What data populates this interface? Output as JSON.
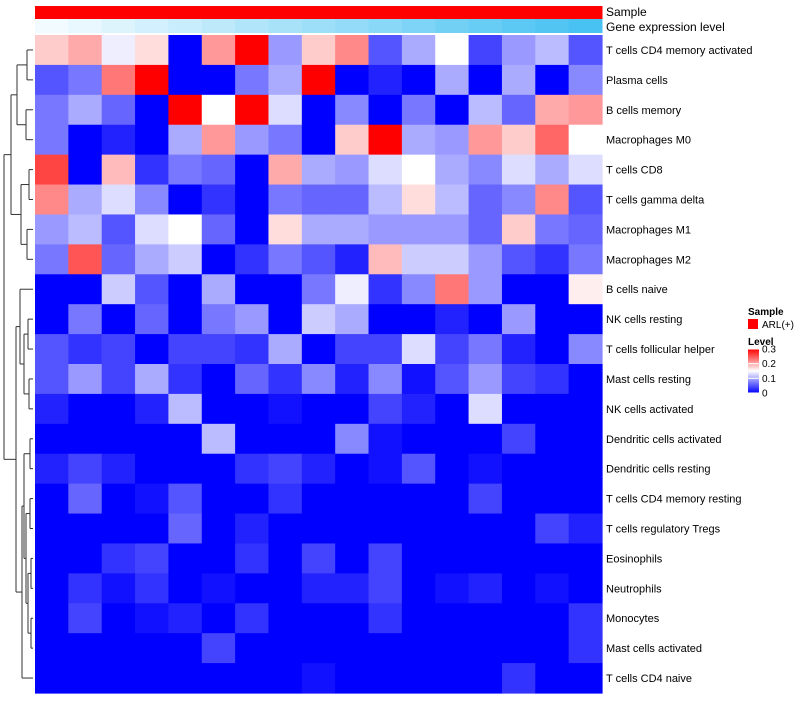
{
  "chart_data": {
    "type": "heatmap",
    "title": "",
    "annotation_rows": [
      {
        "label": "Sample",
        "kind": "sample"
      },
      {
        "label": "Gene expression level",
        "kind": "gradient"
      }
    ],
    "row_labels": [
      "T cells CD4 memory activated",
      "Plasma cells",
      "B cells memory",
      "Macrophages M0",
      "T cells CD8",
      "T cells gamma delta",
      "Macrophages M1",
      "Macrophages M2",
      "B cells naive",
      "NK cells resting",
      "T cells follicular helper",
      "Mast cells resting",
      "NK cells activated",
      "Dendritic cells activated",
      "Dendritic cells resting",
      "T cells CD4 memory resting",
      "T cells regulatory  Tregs",
      "Eosinophils",
      "Neutrophils",
      "Monocytes",
      "Mast cells activated",
      "T cells CD4 naive"
    ],
    "values": [
      [
        0.18,
        0.2,
        0.14,
        0.17,
        0.0,
        0.21,
        0.3,
        0.09,
        0.18,
        0.22,
        0.05,
        0.1,
        0.15,
        0.04,
        0.09,
        0.11,
        0.05
      ],
      [
        0.05,
        0.07,
        0.23,
        0.3,
        0.0,
        0.0,
        0.07,
        0.1,
        0.3,
        0.0,
        0.02,
        0.0,
        0.1,
        0.0,
        0.1,
        0.0,
        0.08
      ],
      [
        0.07,
        0.1,
        0.06,
        0.0,
        0.3,
        0.15,
        0.3,
        0.13,
        0.0,
        0.08,
        0.0,
        0.07,
        0.0,
        0.11,
        0.06,
        0.2,
        0.21
      ],
      [
        0.07,
        0.0,
        0.02,
        0.0,
        0.1,
        0.21,
        0.09,
        0.07,
        0.0,
        0.18,
        0.3,
        0.1,
        0.09,
        0.21,
        0.18,
        0.24,
        0.15
      ],
      [
        0.26,
        0.0,
        0.19,
        0.03,
        0.07,
        0.06,
        0.0,
        0.2,
        0.1,
        0.09,
        0.13,
        0.15,
        0.1,
        0.08,
        0.13,
        0.1,
        0.13
      ],
      [
        0.22,
        0.1,
        0.13,
        0.08,
        0.0,
        0.03,
        0.0,
        0.07,
        0.06,
        0.06,
        0.11,
        0.17,
        0.11,
        0.06,
        0.08,
        0.22,
        0.05
      ],
      [
        0.09,
        0.11,
        0.05,
        0.13,
        0.15,
        0.06,
        0.0,
        0.17,
        0.1,
        0.1,
        0.09,
        0.09,
        0.09,
        0.06,
        0.18,
        0.07,
        0.06
      ],
      [
        0.07,
        0.25,
        0.06,
        0.1,
        0.12,
        0.0,
        0.03,
        0.07,
        0.05,
        0.02,
        0.19,
        0.12,
        0.12,
        0.09,
        0.05,
        0.03,
        0.07
      ],
      [
        0.0,
        0.0,
        0.12,
        0.05,
        0.0,
        0.1,
        0.0,
        0.0,
        0.07,
        0.14,
        0.03,
        0.08,
        0.23,
        0.09,
        0.0,
        0.0,
        0.16
      ],
      [
        0.0,
        0.07,
        0.0,
        0.06,
        0.0,
        0.07,
        0.09,
        0.0,
        0.12,
        0.1,
        0.0,
        0.0,
        0.02,
        0.0,
        0.09,
        0.0,
        0.0
      ],
      [
        0.05,
        0.03,
        0.04,
        0.0,
        0.04,
        0.04,
        0.03,
        0.1,
        0.0,
        0.04,
        0.04,
        0.13,
        0.04,
        0.07,
        0.02,
        0.0,
        0.08
      ],
      [
        0.05,
        0.09,
        0.04,
        0.1,
        0.03,
        0.0,
        0.06,
        0.03,
        0.08,
        0.02,
        0.08,
        0.01,
        0.05,
        0.09,
        0.04,
        0.03,
        0.0
      ],
      [
        0.02,
        0.0,
        0.0,
        0.02,
        0.11,
        0.0,
        0.0,
        0.01,
        0.0,
        0.0,
        0.04,
        0.02,
        0.0,
        0.13,
        0.0,
        0.0,
        0.0
      ],
      [
        0.0,
        0.0,
        0.0,
        0.0,
        0.0,
        0.11,
        0.0,
        0.0,
        0.0,
        0.08,
        0.01,
        0.0,
        0.0,
        0.0,
        0.04,
        0.0,
        0.0
      ],
      [
        0.02,
        0.04,
        0.02,
        0.0,
        0.0,
        0.0,
        0.03,
        0.04,
        0.02,
        0.0,
        0.01,
        0.05,
        0.0,
        0.01,
        0.0,
        0.0,
        0.0
      ],
      [
        0.0,
        0.06,
        0.0,
        0.01,
        0.05,
        0.0,
        0.0,
        0.03,
        0.0,
        0.0,
        0.0,
        0.0,
        0.0,
        0.04,
        0.0,
        0.0,
        0.0
      ],
      [
        0.0,
        0.0,
        0.0,
        0.0,
        0.06,
        0.0,
        0.02,
        0.0,
        0.0,
        0.0,
        0.0,
        0.0,
        0.0,
        0.0,
        0.0,
        0.04,
        0.02
      ],
      [
        0.0,
        0.0,
        0.03,
        0.04,
        0.0,
        0.0,
        0.03,
        0.0,
        0.04,
        0.0,
        0.04,
        0.0,
        0.0,
        0.0,
        0.0,
        0.0,
        0.0
      ],
      [
        0.0,
        0.03,
        0.01,
        0.03,
        0.0,
        0.01,
        0.0,
        0.0,
        0.02,
        0.02,
        0.04,
        0.0,
        0.01,
        0.02,
        0.0,
        0.01,
        0.0
      ],
      [
        0.0,
        0.04,
        0.0,
        0.01,
        0.02,
        0.0,
        0.03,
        0.0,
        0.0,
        0.0,
        0.03,
        0.0,
        0.0,
        0.0,
        0.0,
        0.0,
        0.03
      ],
      [
        0.0,
        0.0,
        0.0,
        0.0,
        0.0,
        0.04,
        0.0,
        0.0,
        0.0,
        0.0,
        0.0,
        0.0,
        0.0,
        0.0,
        0.0,
        0.0,
        0.03
      ],
      [
        0.0,
        0.0,
        0.0,
        0.0,
        0.0,
        0.0,
        0.0,
        0.0,
        0.01,
        0.0,
        0.0,
        0.0,
        0.0,
        0.0,
        0.03,
        0.0,
        0.0
      ]
    ],
    "sample_annotation": [
      "ARL(+)",
      "ARL(+)",
      "ARL(+)",
      "ARL(+)",
      "ARL(+)",
      "ARL(+)",
      "ARL(+)",
      "ARL(+)",
      "ARL(+)",
      "ARL(+)",
      "ARL(+)",
      "ARL(+)",
      "ARL(+)",
      "ARL(+)",
      "ARL(+)",
      "ARL(+)",
      "ARL(+)"
    ],
    "gene_expression_level": [
      0.0,
      0.06,
      0.12,
      0.19,
      0.25,
      0.31,
      0.38,
      0.44,
      0.5,
      0.56,
      0.62,
      0.69,
      0.75,
      0.81,
      0.88,
      0.94,
      1.0
    ],
    "color_scale": {
      "min": 0,
      "mid": 0.15,
      "max": 0.3,
      "low_color": "#0000ff",
      "mid_color": "#ffffff",
      "high_color": "#ff0000"
    },
    "gradient_colors": {
      "low": "#f2fbff",
      "high": "#48c2f2"
    },
    "legend": {
      "sample_title": "Sample",
      "sample_items": [
        {
          "label": "ARL(+)",
          "color": "#ff0000"
        }
      ],
      "level_title": "Level",
      "level_ticks": [
        {
          "label": "0.3",
          "value": 0.3
        },
        {
          "label": "0.2",
          "value": 0.2
        },
        {
          "label": "0.1",
          "value": 0.1
        },
        {
          "label": "0",
          "value": 0
        }
      ]
    },
    "row_dendrogram": true,
    "column_dendrogram": false
  }
}
